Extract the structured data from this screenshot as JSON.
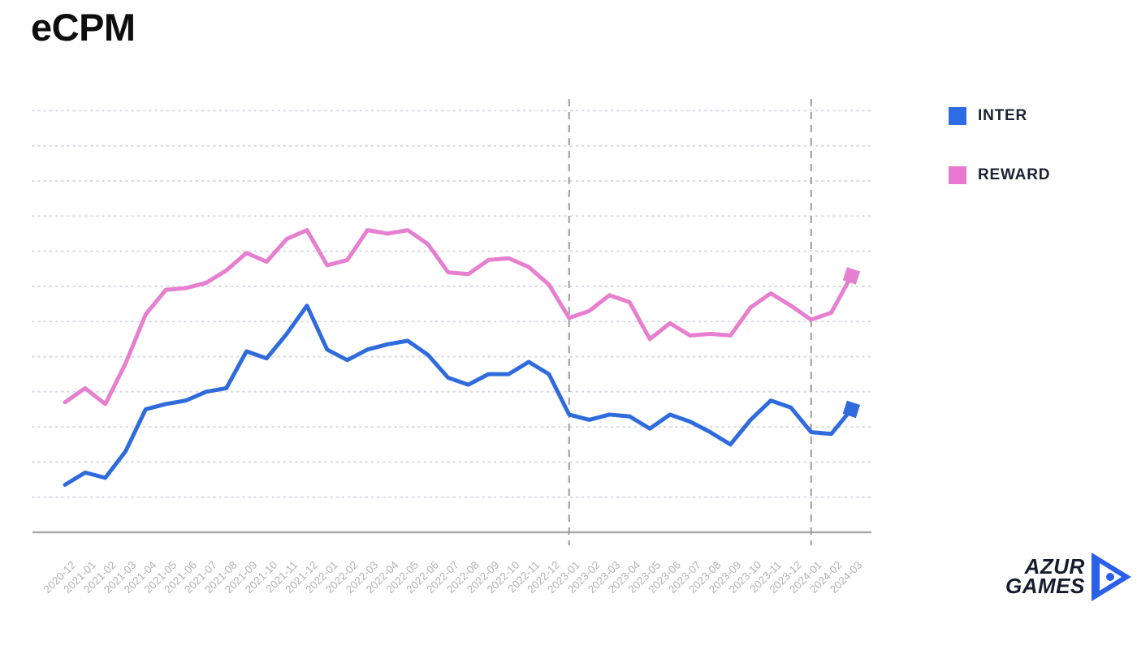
{
  "title": "eCPM",
  "legend": [
    {
      "label": "INTER",
      "color": "#2e6ce4"
    },
    {
      "label": "REWARD",
      "color": "#e678ce"
    }
  ],
  "chart_data": {
    "type": "line",
    "title": "eCPM",
    "x_categories": [
      "2020-12",
      "2021-01",
      "2021-02",
      "2021-03",
      "2021-04",
      "2021-05",
      "2021-06",
      "2021-07",
      "2021-08",
      "2021-09",
      "2021-10",
      "2021-11",
      "2021-12",
      "2022-01",
      "2022-02",
      "2022-03",
      "2022-04",
      "2022-05",
      "2022-06",
      "2022-07",
      "2022-08",
      "2022-09",
      "2022-10",
      "2022-11",
      "2022-12",
      "2023-01",
      "2023-02",
      "2023-03",
      "2023-04",
      "2023-05",
      "2023-06",
      "2023-07",
      "2023-08",
      "2023-09",
      "2023-10",
      "2023-11",
      "2023-12",
      "2024-01",
      "2024-02",
      "2024-03"
    ],
    "series": [
      {
        "name": "INTER",
        "color": "#2f6bdd",
        "end_marker": "square",
        "values": [
          1.35,
          1.7,
          1.55,
          2.3,
          3.5,
          3.65,
          3.75,
          4.0,
          4.1,
          5.15,
          4.95,
          5.65,
          6.45,
          5.2,
          4.9,
          5.2,
          5.35,
          5.45,
          5.05,
          4.4,
          4.2,
          4.5,
          4.5,
          4.85,
          4.5,
          3.35,
          3.2,
          3.35,
          3.3,
          2.95,
          3.35,
          3.15,
          2.85,
          2.5,
          3.2,
          3.75,
          3.55,
          2.85,
          2.8,
          3.5
        ]
      },
      {
        "name": "REWARD",
        "color": "#e77fd0",
        "end_marker": "square",
        "values": [
          3.7,
          4.1,
          3.65,
          4.8,
          6.2,
          6.9,
          6.95,
          7.1,
          7.45,
          7.95,
          7.7,
          8.35,
          8.6,
          7.6,
          7.75,
          8.6,
          8.5,
          8.6,
          8.2,
          7.4,
          7.35,
          7.75,
          7.8,
          7.55,
          7.05,
          6.1,
          6.3,
          6.75,
          6.55,
          5.5,
          5.95,
          5.6,
          5.65,
          5.6,
          6.4,
          6.8,
          6.45,
          6.05,
          6.25,
          7.3
        ]
      }
    ],
    "y_axis": {
      "labels_visible": false,
      "units": "relative (no y tick labels shown)",
      "ylim": [
        0,
        12.5
      ],
      "gridline_values": [
        1,
        2,
        3,
        4,
        5,
        6,
        7,
        8,
        9,
        10,
        11,
        12
      ]
    },
    "x_axis": {
      "tick_rotation_deg": -45
    },
    "reference_lines": [
      {
        "x": "2023-01",
        "style": "dashed"
      },
      {
        "x": "2024-01",
        "style": "dashed"
      }
    ],
    "grid": true,
    "legend_position": "top-right"
  },
  "logo": {
    "line1": "AZUR",
    "line2": "GAMES"
  },
  "colors": {
    "background": "#ffffff",
    "axis": "#a9a9a9",
    "gridline": "#d6d9e2",
    "dashed_line": "#9b9b9b",
    "tick_label": "#b3b3b3",
    "title": "#0e0e0e",
    "legend_text": "#1b2130",
    "logo_text": "#161c2d",
    "logo_accent": "#2a60e8"
  }
}
